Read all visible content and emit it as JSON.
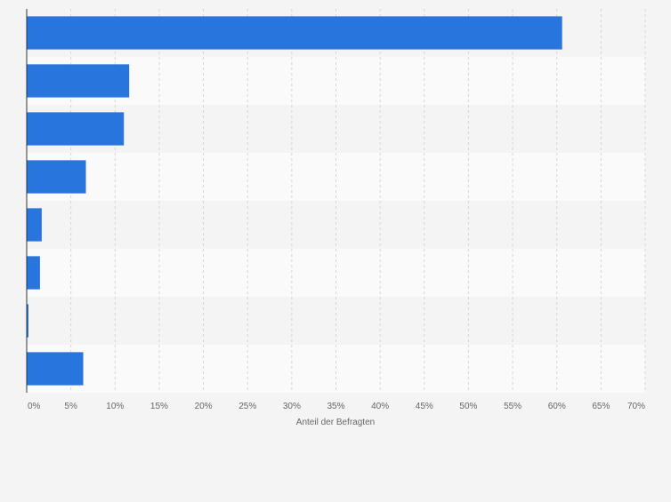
{
  "chart_data": {
    "type": "bar",
    "orientation": "horizontal",
    "categories": [
      "",
      "",
      "",
      "",
      "",
      "",
      "",
      ""
    ],
    "values": [
      60.6,
      11.6,
      11.0,
      6.7,
      1.7,
      1.5,
      0.2,
      6.4
    ],
    "xlabel": "Anteil der Befragten",
    "xlim": [
      0,
      70
    ],
    "xticks": [
      0,
      5,
      10,
      15,
      20,
      25,
      30,
      35,
      40,
      45,
      50,
      55,
      60,
      65,
      70
    ],
    "xtick_labels": [
      "0%",
      "5%",
      "10%",
      "15%",
      "20%",
      "25%",
      "30%",
      "35%",
      "40%",
      "45%",
      "50%",
      "55%",
      "60%",
      "65%",
      "70%"
    ],
    "grid": true,
    "bar_color": "#2876dd",
    "row_colors": [
      "#f4f4f4",
      "#fafafa"
    ],
    "gridline_color": "#d6d6d6"
  }
}
